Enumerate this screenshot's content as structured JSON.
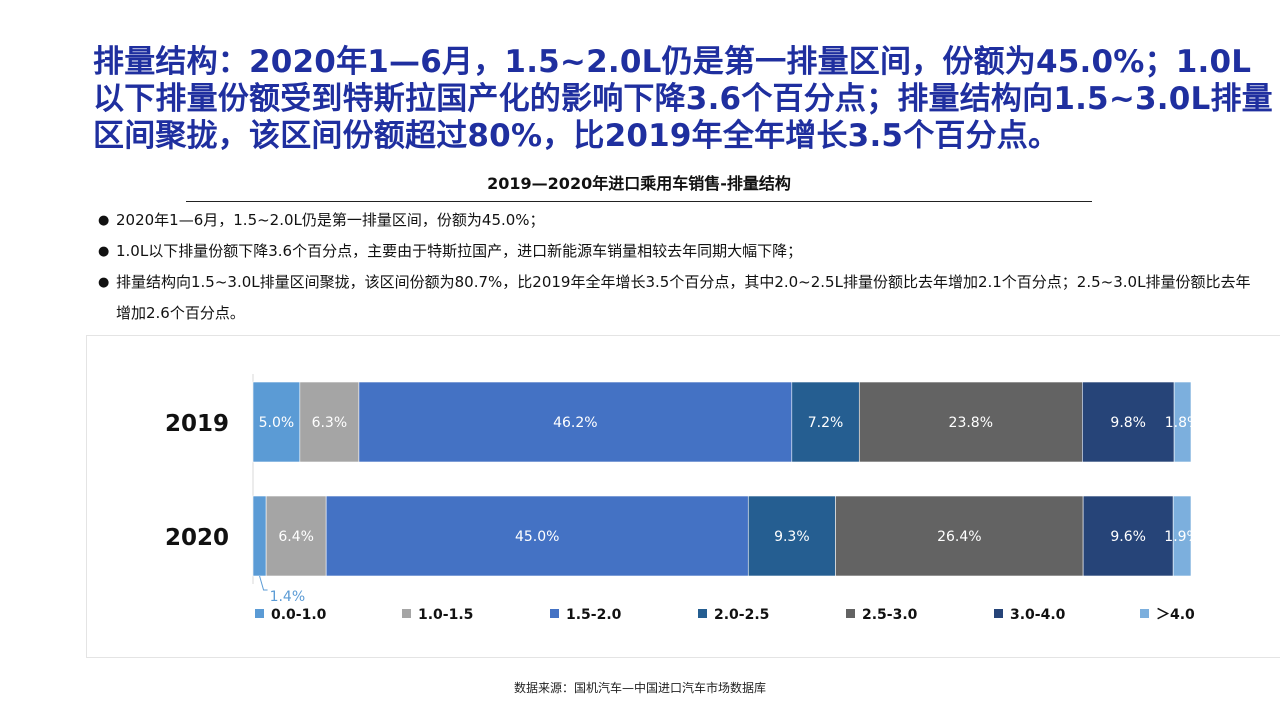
{
  "headline": "排量结构：2020年1—6月，1.5~2.0L仍是第一排量区间，份额为45.0%；1.0L以下排量份额受到特斯拉国产化的影响下降3.6个百分点；排量结构向1.5~3.0L排量区间聚拢，该区间份额超过80%，比2019年全年增长3.5个百分点。",
  "bullets": [
    "2020年1—6月，1.5~2.0L仍是第一排量区间，份额为45.0%；",
    "1.0L以下排量份额下降3.6个百分点，主要由于特斯拉国产，进口新能源车销量相较去年同期大幅下降；",
    "排量结构向1.5~3.0L排量区间聚拢，该区间份额为80.7%，比2019年全年增长3.5个百分点，其中2.0~2.5L排量份额比去年增加2.1个百分点；2.5~3.0L排量份额比去年增加2.6个百分点。"
  ],
  "bullet_symbol": "●",
  "source": "数据来源：国机汽车—中国进口汽车市场数据库",
  "chart_data": {
    "type": "bar",
    "orientation": "horizontal",
    "stacked": true,
    "normalized": true,
    "title": "2019—2020年进口乘用车销售-排量结构",
    "categories": [
      "2019",
      "2020"
    ],
    "series": [
      {
        "name": "0.0-1.0",
        "values": [
          5.0,
          1.4
        ],
        "labels": [
          "5.0%",
          "1.4%"
        ],
        "color": "#5b9bd5"
      },
      {
        "name": "1.0-1.5",
        "values": [
          6.3,
          6.4
        ],
        "labels": [
          "6.3%",
          "6.4%"
        ],
        "color": "#a5a5a5"
      },
      {
        "name": "1.5-2.0",
        "values": [
          46.2,
          45.0
        ],
        "labels": [
          "46.2%",
          "45.0%"
        ],
        "color": "#4472c4"
      },
      {
        "name": "2.0-2.5",
        "values": [
          7.2,
          9.3
        ],
        "labels": [
          "7.2%",
          "9.3%"
        ],
        "color": "#255e91"
      },
      {
        "name": "2.5-3.0",
        "values": [
          23.8,
          26.4
        ],
        "labels": [
          "23.8%",
          "26.4%"
        ],
        "color": "#636363"
      },
      {
        "name": "3.0-4.0",
        "values": [
          9.8,
          9.6
        ],
        "labels": [
          "9.8%",
          "9.6%"
        ],
        "color": "#264478"
      },
      {
        "name": "＞4.0",
        "values": [
          1.8,
          1.9
        ],
        "labels": [
          "1.8%",
          "1.9%"
        ],
        "color": "#7cafdd"
      }
    ],
    "callout": {
      "series": "0.0-1.0",
      "category": "2020",
      "label": "1.4%"
    },
    "data_label_color": "#ffffff",
    "callout_label_color": "#5b9bd5",
    "legend_position": "bottom",
    "grid": false
  }
}
